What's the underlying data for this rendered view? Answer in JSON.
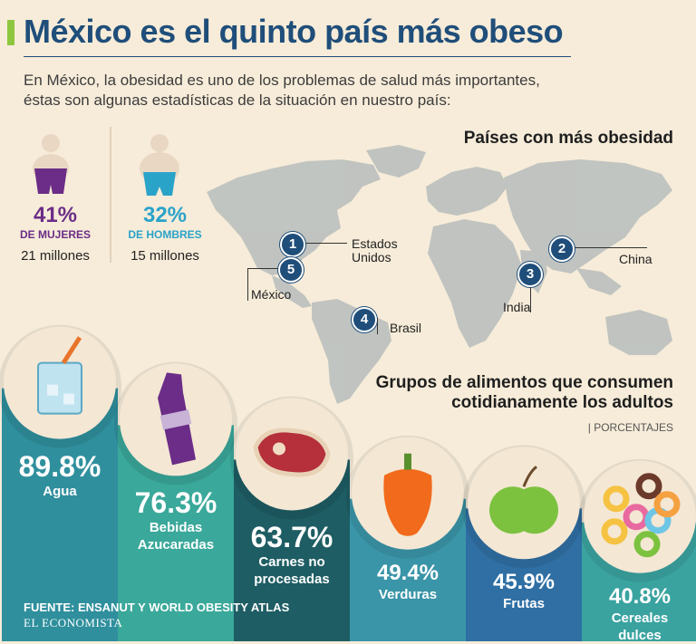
{
  "header": {
    "title": "México es el quinto país más obeso",
    "intro": "En México, la obesidad es uno de los problemas de salud más importantes, éstas son algunas estadísticas de la situación en nuestro país:"
  },
  "stats": [
    {
      "pct": "41%",
      "label": "DE MUJERES",
      "millions": "21 millones",
      "color": "#6b2d87"
    },
    {
      "pct": "32%",
      "label": "DE HOMBRES",
      "millions": "15 millones",
      "color": "#2aa3c9"
    }
  ],
  "map": {
    "title": "Países con más obesidad",
    "countries": [
      {
        "rank": "1",
        "name": "Estados Unidos"
      },
      {
        "rank": "2",
        "name": "China"
      },
      {
        "rank": "3",
        "name": "India"
      },
      {
        "rank": "4",
        "name": "Brasil"
      },
      {
        "rank": "5",
        "name": "México"
      }
    ]
  },
  "chart_data": {
    "type": "bar",
    "title": "Grupos de alimentos que consumen cotidianamente los adultos",
    "subtitle": "| PORCENTAJES",
    "categories": [
      "Agua",
      "Bebidas Azucaradas",
      "Carnes no procesadas",
      "Verduras",
      "Frutas",
      "Cereales dulces"
    ],
    "values": [
      89.8,
      76.3,
      63.7,
      49.4,
      45.9,
      40.8
    ],
    "labels": [
      "89.8%",
      "76.3%",
      "63.7%",
      "49.4%",
      "45.9%",
      "40.8%"
    ],
    "colors": [
      "#2f8f9d",
      "#3aa89a",
      "#1e5d63",
      "#3a95a8",
      "#2f6fa3",
      "#3aa3a0"
    ],
    "unit": "%"
  },
  "footer": {
    "source": "FUENTE: ENSANUT Y WORLD OBESITY ATLAS",
    "logo": "EL ECONOMISTA"
  }
}
